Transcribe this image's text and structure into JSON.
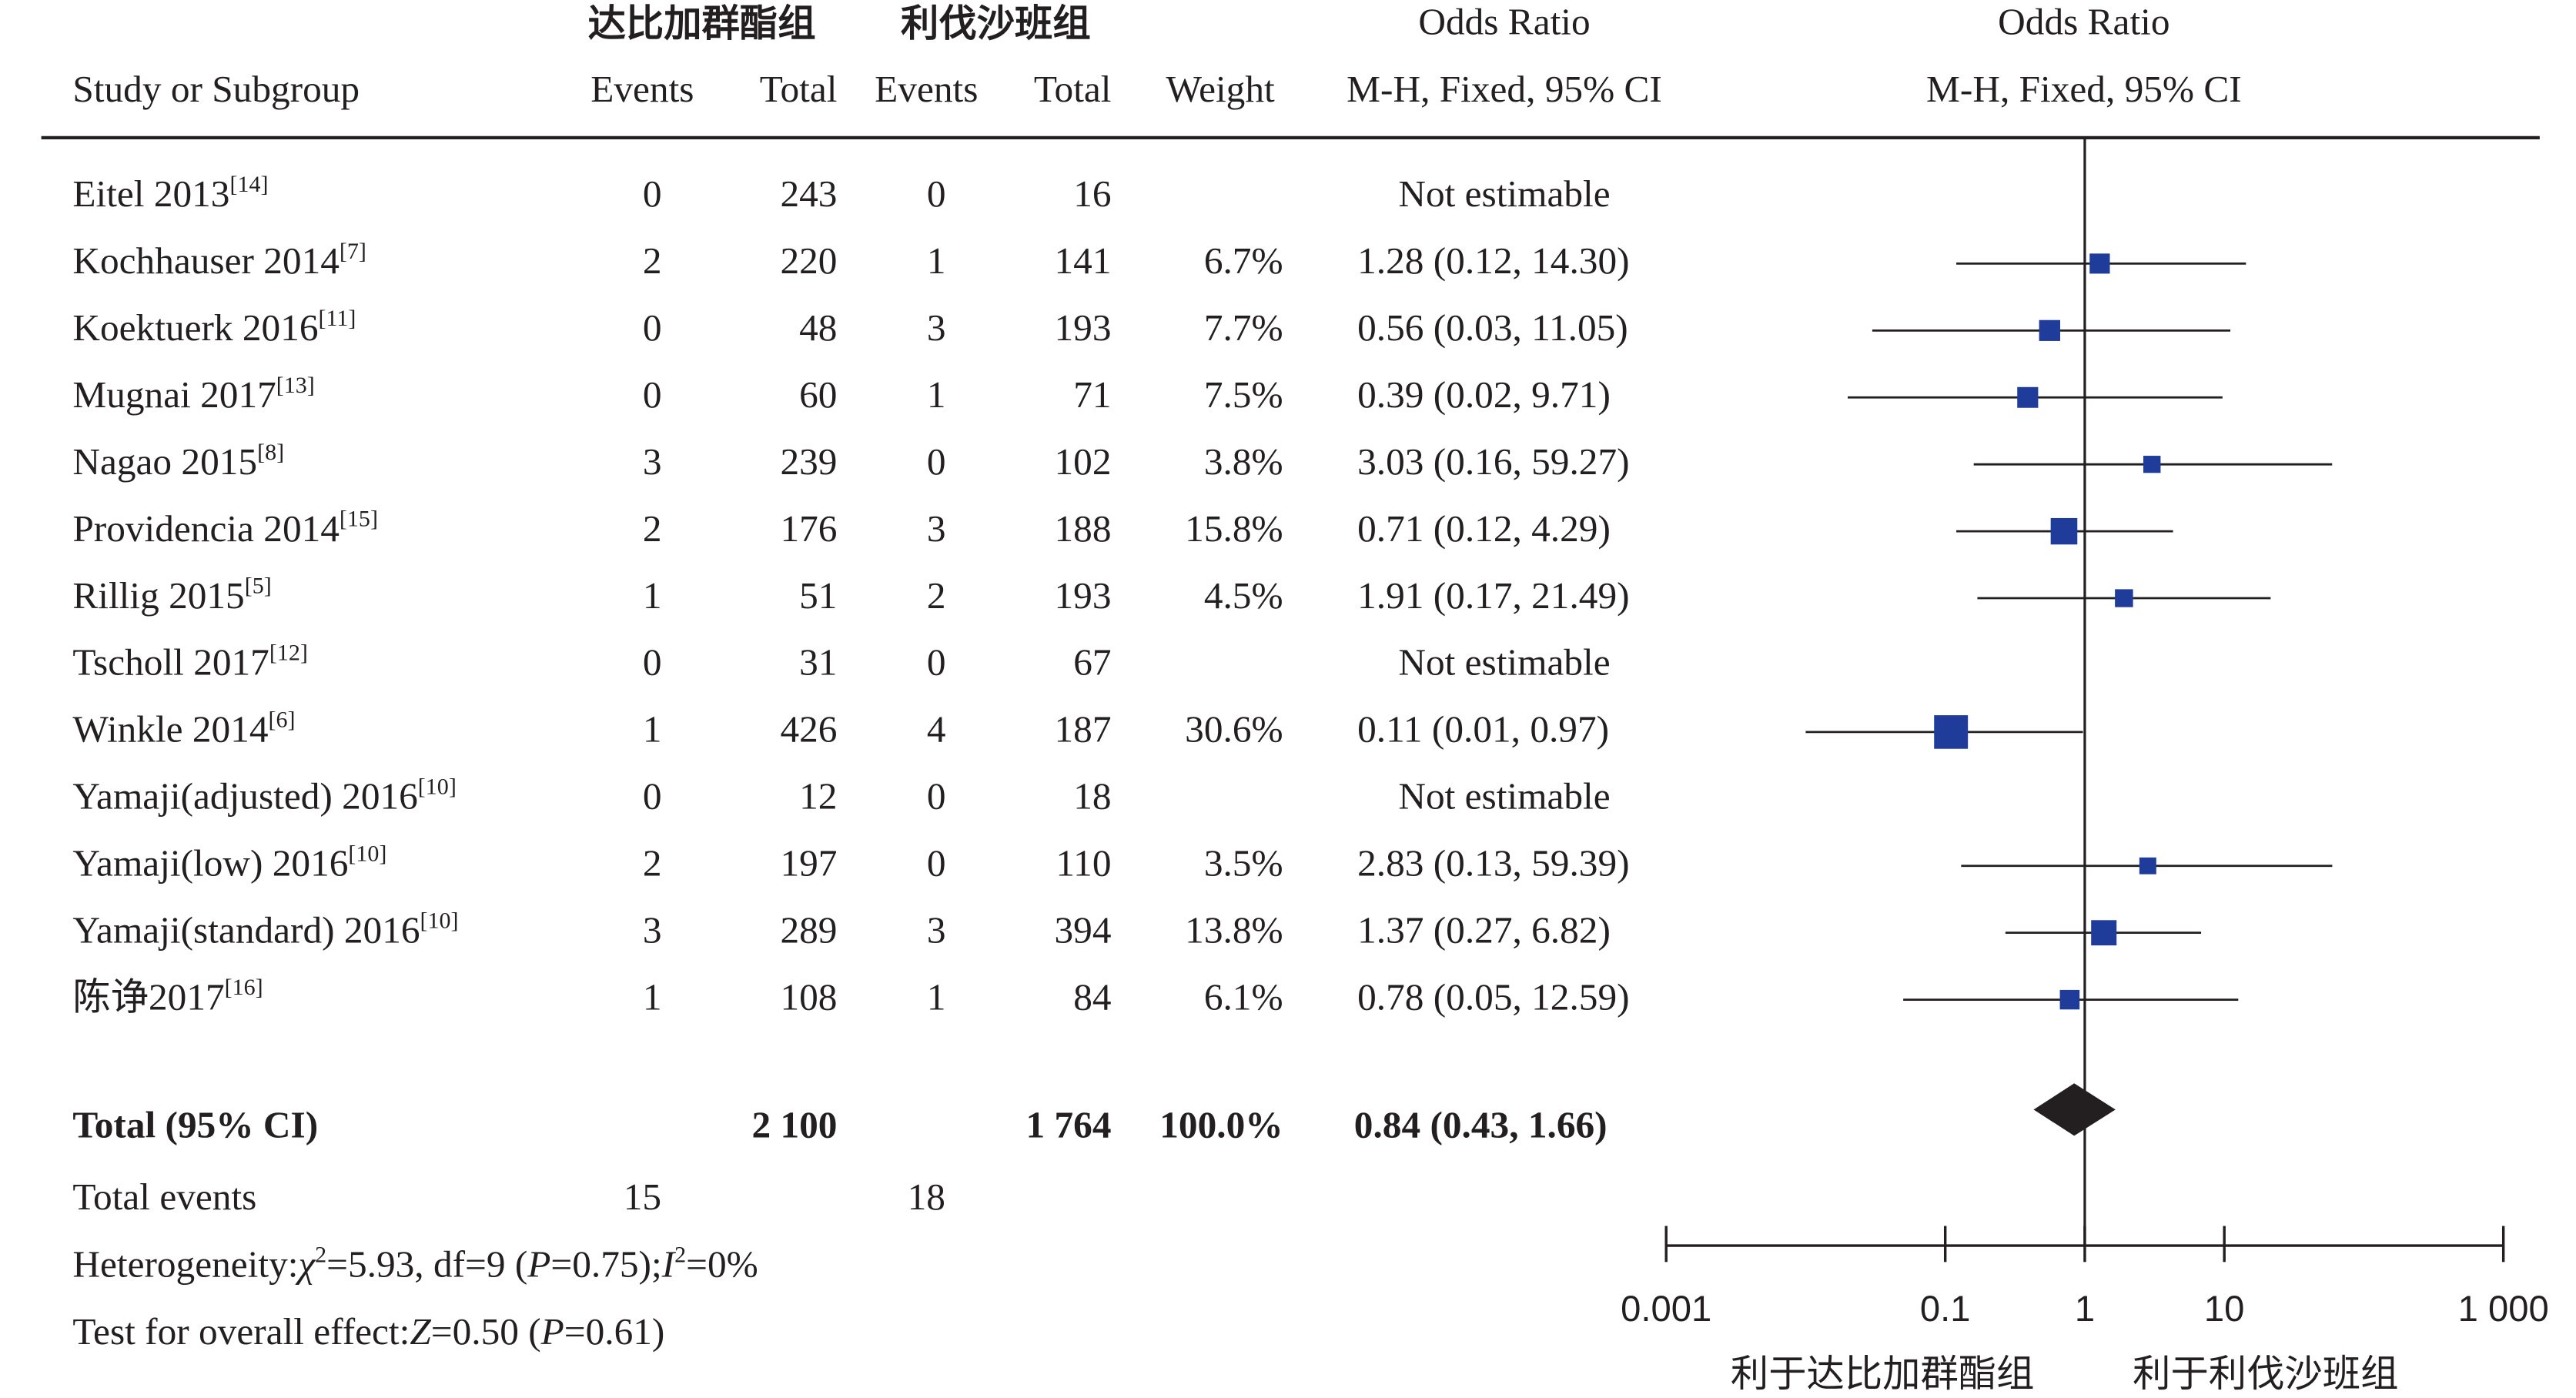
{
  "header": {
    "group_left": "达比加群酯组",
    "group_right": "利伐沙班组",
    "or_label_table": "Odds Ratio",
    "or_label_plot": "Odds Ratio",
    "col_study": "Study or Subgroup",
    "col_events_1": "Events",
    "col_total_1": "Total",
    "col_events_2": "Events",
    "col_total_2": "Total",
    "col_weight": "Weight",
    "col_method_table": "M-H, Fixed, 95% CI",
    "col_method_plot": "M-H, Fixed, 95% CI"
  },
  "colors": {
    "text": "#231f20",
    "marker": "#1f3c9b",
    "diamond": "#231f20",
    "line": "#231f20"
  },
  "chart_data": {
    "type": "forest",
    "x_scale": "log10",
    "xlim": [
      0.001,
      1000
    ],
    "x_ticks": [
      0.001,
      0.1,
      1,
      10,
      1000
    ],
    "x_tick_labels": [
      "0.001",
      "0.1",
      "1",
      "10",
      "1 000"
    ],
    "reference_line": 1,
    "favours_left": "利于达比加群酯组",
    "favours_right": "利于利伐沙班组",
    "studies": [
      {
        "name": "Eitel 2013",
        "ref": "[14]",
        "e1": "0",
        "t1": "243",
        "e2": "0",
        "t2": "16",
        "weight": "",
        "ci_text": "Not estimable",
        "or": null,
        "lo": null,
        "hi": null,
        "w": 0
      },
      {
        "name": "Kochhauser 2014",
        "ref": "[7]",
        "e1": "2",
        "t1": "220",
        "e2": "1",
        "t2": "141",
        "weight": "6.7%",
        "ci_text": "1.28 (0.12, 14.30)",
        "or": 1.28,
        "lo": 0.12,
        "hi": 14.3,
        "w": 6.7
      },
      {
        "name": "Koektuerk 2016",
        "ref": "[11]",
        "e1": "0",
        "t1": "48",
        "e2": "3",
        "t2": "193",
        "weight": "7.7%",
        "ci_text": "0.56 (0.03, 11.05)",
        "or": 0.56,
        "lo": 0.03,
        "hi": 11.05,
        "w": 7.7
      },
      {
        "name": "Mugnai 2017",
        "ref": "[13]",
        "e1": "0",
        "t1": "60",
        "e2": "1",
        "t2": "71",
        "weight": "7.5%",
        "ci_text": "0.39 (0.02, 9.71)",
        "or": 0.39,
        "lo": 0.02,
        "hi": 9.71,
        "w": 7.5
      },
      {
        "name": "Nagao 2015",
        "ref": "[8]",
        "e1": "3",
        "t1": "239",
        "e2": "0",
        "t2": "102",
        "weight": "3.8%",
        "ci_text": "3.03 (0.16, 59.27)",
        "or": 3.03,
        "lo": 0.16,
        "hi": 59.27,
        "w": 3.8
      },
      {
        "name": "Providencia 2014",
        "ref": "[15]",
        "e1": "2",
        "t1": "176",
        "e2": "3",
        "t2": "188",
        "weight": "15.8%",
        "ci_text": "0.71 (0.12, 4.29)",
        "or": 0.71,
        "lo": 0.12,
        "hi": 4.29,
        "w": 15.8
      },
      {
        "name": "Rillig 2015",
        "ref": "[5]",
        "e1": "1",
        "t1": "51",
        "e2": "2",
        "t2": "193",
        "weight": "4.5%",
        "ci_text": "1.91 (0.17, 21.49)",
        "or": 1.91,
        "lo": 0.17,
        "hi": 21.49,
        "w": 4.5
      },
      {
        "name": "Tscholl 2017",
        "ref": "[12]",
        "e1": "0",
        "t1": "31",
        "e2": "0",
        "t2": "67",
        "weight": "",
        "ci_text": "Not estimable",
        "or": null,
        "lo": null,
        "hi": null,
        "w": 0
      },
      {
        "name": "Winkle 2014",
        "ref": "[6]",
        "e1": "1",
        "t1": "426",
        "e2": "4",
        "t2": "187",
        "weight": "30.6%",
        "ci_text": "0.11 (0.01, 0.97)",
        "or": 0.11,
        "lo": 0.01,
        "hi": 0.97,
        "w": 30.6
      },
      {
        "name": "Yamaji(adjusted) 2016",
        "ref": "[10]",
        "e1": "0",
        "t1": "12",
        "e2": "0",
        "t2": "18",
        "weight": "",
        "ci_text": "Not estimable",
        "or": null,
        "lo": null,
        "hi": null,
        "w": 0
      },
      {
        "name": "Yamaji(low) 2016",
        "ref": "[10]",
        "e1": "2",
        "t1": "197",
        "e2": "0",
        "t2": "110",
        "weight": "3.5%",
        "ci_text": "2.83 (0.13, 59.39)",
        "or": 2.83,
        "lo": 0.13,
        "hi": 59.39,
        "w": 3.5
      },
      {
        "name": "Yamaji(standard) 2016",
        "ref": "[10]",
        "e1": "3",
        "t1": "289",
        "e2": "3",
        "t2": "394",
        "weight": "13.8%",
        "ci_text": "1.37 (0.27, 6.82)",
        "or": 1.37,
        "lo": 0.27,
        "hi": 6.82,
        "w": 13.8
      },
      {
        "name": "陈诤2017",
        "ref": "[16]",
        "e1": "1",
        "t1": "108",
        "e2": "1",
        "t2": "84",
        "weight": "6.1%",
        "ci_text": "0.78 (0.05, 12.59)",
        "or": 0.78,
        "lo": 0.05,
        "hi": 12.59,
        "w": 6.1
      }
    ],
    "total": {
      "label": "Total (95% CI)",
      "t1": "2 100",
      "t2": "1 764",
      "weight": "100.0%",
      "ci_text": "0.84 (0.43, 1.66)",
      "or": 0.84,
      "lo": 0.43,
      "hi": 1.66
    },
    "total_events": {
      "label": "Total events",
      "e1": "15",
      "e2": "18"
    },
    "heterogeneity": {
      "label": "Heterogeneity:",
      "chi2_symbol": "χ",
      "chi2_exp": "2",
      "chi2_value": "=5.93, df=9 (",
      "p_symbol": "P",
      "p_value": "=0.75);",
      "i2_symbol": "I",
      "i2_exp": "2",
      "i2_value": "=0%"
    },
    "overall_effect": {
      "label": "Test for overall effect:",
      "z_symbol": "Z",
      "z_value": "=0.50 (",
      "p_symbol": "P",
      "p_value": "=0.61)"
    }
  }
}
